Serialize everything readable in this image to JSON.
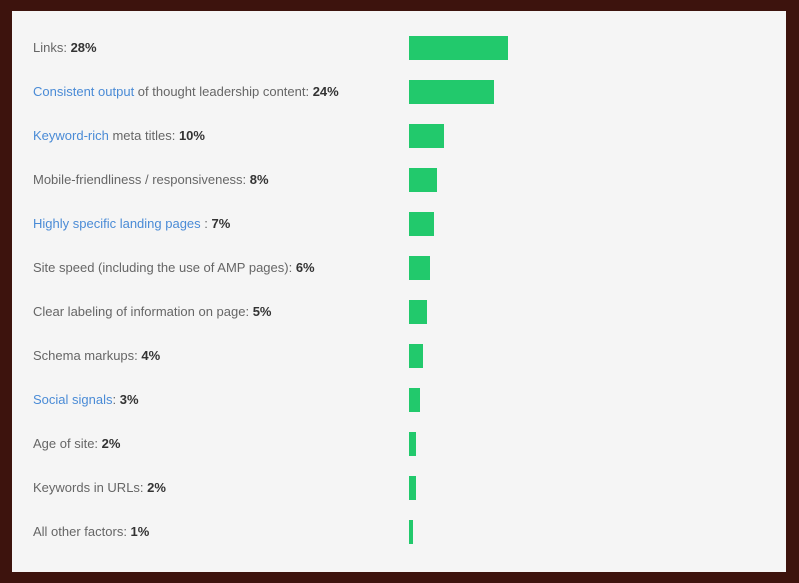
{
  "chart_data": {
    "type": "bar",
    "orientation": "horizontal",
    "xlim": [
      0,
      28
    ],
    "categories": [
      {
        "link": "",
        "text": "Links: ",
        "pct_label": "28%",
        "value": 28
      },
      {
        "link": "Consistent output",
        "text": " of thought leadership content: ",
        "pct_label": "24%",
        "value": 24
      },
      {
        "link": "Keyword-rich",
        "text": " meta titles: ",
        "pct_label": "10%",
        "value": 10
      },
      {
        "link": "",
        "text": "Mobile-friendliness / responsiveness: ",
        "pct_label": "8%",
        "value": 8
      },
      {
        "link": "Highly specific landing pages",
        "text": " : ",
        "pct_label": "7%",
        "value": 7
      },
      {
        "link": "",
        "text": "Site speed (including the use of AMP pages): ",
        "pct_label": "6%",
        "value": 6
      },
      {
        "link": "",
        "text": "Clear labeling of information on page: ",
        "pct_label": "5%",
        "value": 5
      },
      {
        "link": "",
        "text": "Schema markups: ",
        "pct_label": "4%",
        "value": 4
      },
      {
        "link": "Social signals",
        "text": ": ",
        "pct_label": "3%",
        "value": 3
      },
      {
        "link": "",
        "text": "Age of site: ",
        "pct_label": "2%",
        "value": 2
      },
      {
        "link": "",
        "text": "Keywords in URLs: ",
        "pct_label": "2%",
        "value": 2
      },
      {
        "link": "",
        "text": "All other factors: ",
        "pct_label": "1%",
        "value": 1
      }
    ]
  },
  "colors": {
    "bar": "#22c96c",
    "link": "#4a8bd6",
    "label": "#666666",
    "percent": "#333333",
    "panel": "#f5f5f5",
    "frame": "#3d130d"
  }
}
